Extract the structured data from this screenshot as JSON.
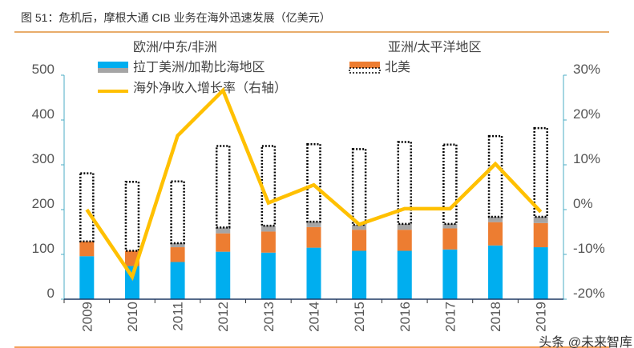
{
  "title": "图 51：危机后，摩根大通 CIB 业务在海外迅速发展（亿美元）",
  "watermark": "头条 @未来智库",
  "chart_data": {
    "type": "bar",
    "stacked": true,
    "title": "图 51：危机后，摩根大通 CIB 业务在海外迅速发展（亿美元）",
    "categories": [
      "2009",
      "2010",
      "2011",
      "2012",
      "2013",
      "2014",
      "2015",
      "2016",
      "2017",
      "2018",
      "2019"
    ],
    "series": [
      {
        "name": "欧洲/中东/非洲",
        "type": "bar",
        "color": "#00AEEF",
        "values": [
          96,
          74,
          83,
          106,
          104,
          115,
          108,
          108,
          111,
          120,
          116
        ]
      },
      {
        "name": "亚洲/太平洋地区",
        "type": "bar",
        "color": "#ED7D31",
        "values": [
          33,
          34,
          33,
          41,
          47,
          46,
          47,
          47,
          47,
          52,
          54
        ]
      },
      {
        "name": "拉丁美洲/加勒比海地区",
        "type": "bar",
        "color": "#A5A5A5",
        "values": [
          0,
          0,
          9,
          13,
          13,
          12,
          11,
          13,
          10,
          12,
          14
        ]
      },
      {
        "name": "北美",
        "type": "bar",
        "color": "#FFFFFF",
        "border": "dotted black",
        "values": [
          152,
          154,
          138,
          182,
          178,
          173,
          169,
          183,
          177,
          180,
          198
        ]
      },
      {
        "name": "海外净收入增长率（右轴）",
        "type": "line",
        "axis": "right",
        "color": "#FFC000",
        "values": [
          0,
          -15,
          16.5,
          26.6,
          1.5,
          5.5,
          -3.3,
          0.2,
          0.2,
          10.2,
          -0.5
        ]
      }
    ],
    "ylim": [
      0,
      500
    ],
    "yticks": [
      "0",
      "100",
      "200",
      "300",
      "400",
      "500"
    ],
    "y2lim": [
      -20,
      30
    ],
    "y2ticks": [
      "-20%",
      "-10%",
      "0%",
      "10%",
      "20%",
      "30%"
    ],
    "legend_placement": "top",
    "grid": false
  }
}
